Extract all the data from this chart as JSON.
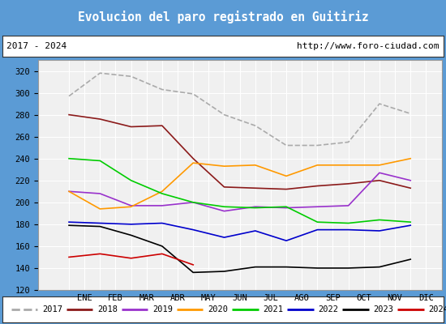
{
  "title": "Evolucion del paro registrado en Guitiriz",
  "title_color": "#4f86c6",
  "subtitle_left": "2017 - 2024",
  "subtitle_right": "http://www.foro-ciudad.com",
  "xlabel_months": [
    "ENE",
    "FEB",
    "MAR",
    "ABR",
    "MAY",
    "JUN",
    "JUL",
    "AGO",
    "SEP",
    "OCT",
    "NOV",
    "DIC"
  ],
  "ylim": [
    120,
    330
  ],
  "yticks": [
    120,
    140,
    160,
    180,
    200,
    220,
    240,
    260,
    280,
    300,
    320
  ],
  "series": {
    "2017": {
      "color": "#aaaaaa",
      "data": [
        297,
        318,
        315,
        303,
        299,
        280,
        270,
        252,
        252,
        255,
        290,
        281
      ]
    },
    "2018": {
      "color": "#8b1a1a",
      "data": [
        280,
        276,
        269,
        270,
        240,
        214,
        213,
        212,
        215,
        217,
        220,
        213
      ]
    },
    "2019": {
      "color": "#9932cc",
      "data": [
        210,
        208,
        197,
        197,
        200,
        192,
        196,
        195,
        196,
        197,
        227,
        220
      ]
    },
    "2020": {
      "color": "#ff9900",
      "data": [
        210,
        194,
        196,
        210,
        236,
        233,
        234,
        224,
        234,
        234,
        234,
        240
      ]
    },
    "2021": {
      "color": "#00cc00",
      "data": [
        240,
        238,
        220,
        208,
        200,
        196,
        195,
        196,
        182,
        181,
        184,
        182
      ]
    },
    "2022": {
      "color": "#0000cc",
      "data": [
        182,
        181,
        180,
        181,
        175,
        168,
        174,
        165,
        175,
        175,
        174,
        179
      ]
    },
    "2023": {
      "color": "#000000",
      "data": [
        179,
        178,
        170,
        160,
        136,
        137,
        141,
        141,
        140,
        140,
        141,
        148
      ]
    },
    "2024": {
      "color": "#cc0000",
      "data": [
        150,
        153,
        149,
        153,
        143,
        null,
        null,
        null,
        null,
        null,
        null,
        null
      ]
    }
  },
  "legend_order": [
    "2017",
    "2018",
    "2019",
    "2020",
    "2021",
    "2022",
    "2023",
    "2024"
  ]
}
